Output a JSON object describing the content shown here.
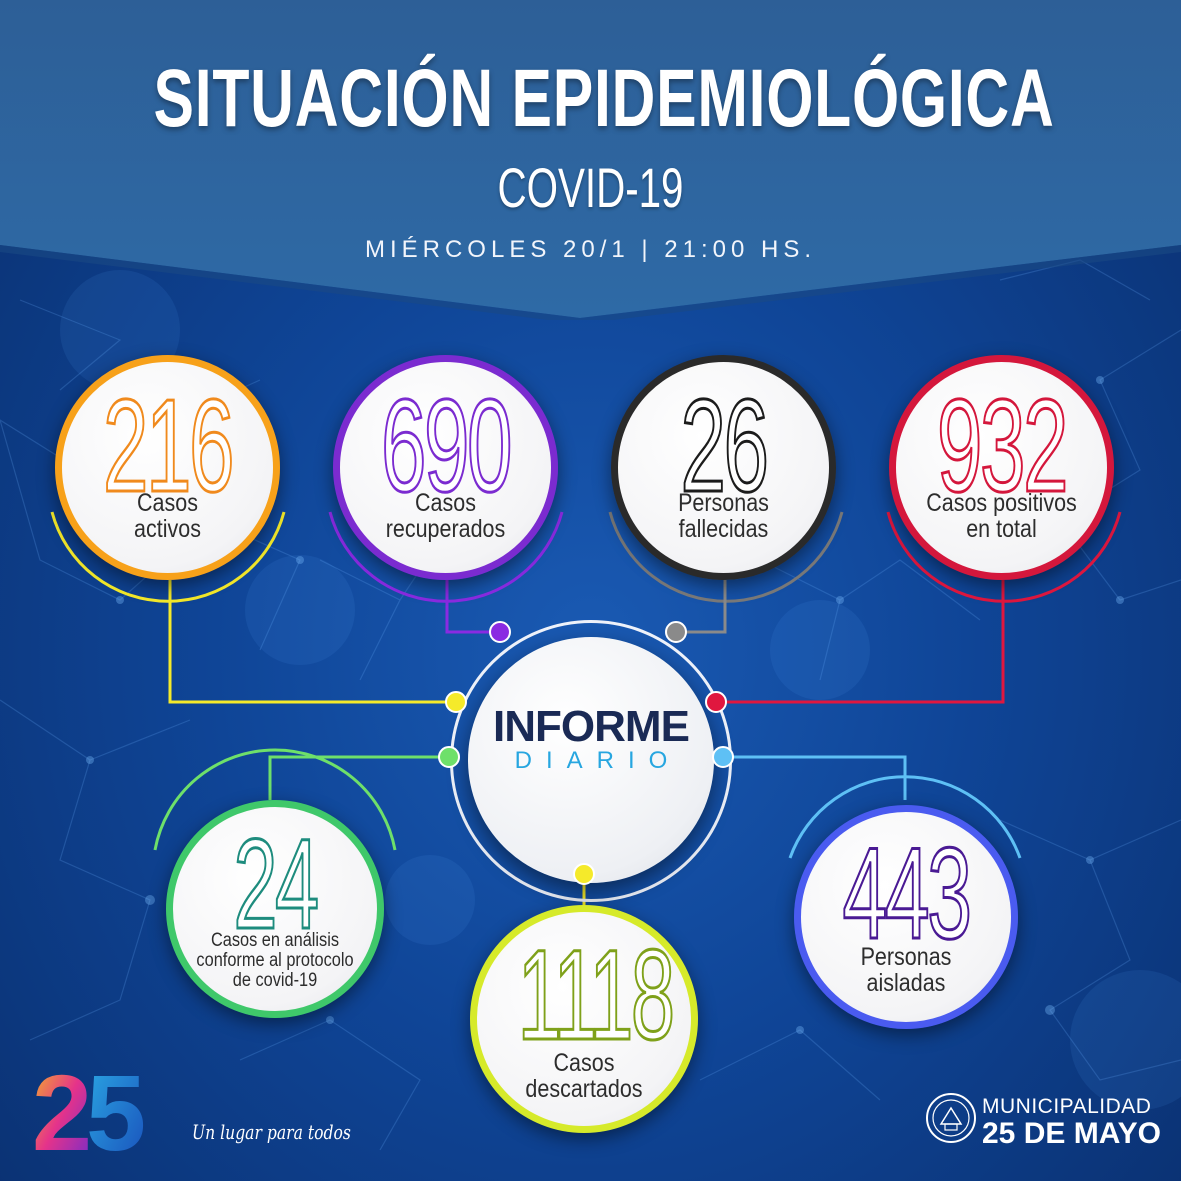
{
  "header": {
    "title": "SITUACIÓN EPIDEMIOLÓGICA",
    "subtitle": "COVID-19",
    "date": "MIÉRCOLES 20/1 | 21:00 HS."
  },
  "colors": {
    "background": "#0f4597",
    "banner": "#2b5d96",
    "activos": "#f08a1d",
    "recuperados": "#7b2bd0",
    "fallecidos": "#2a2a2a",
    "positivos": "#d4173c",
    "analisis": "#1e8c7e",
    "descartados": "#7fa11a",
    "aislados": "#4a1a94"
  },
  "stats": {
    "activos": {
      "value": "216",
      "label_1": "Casos",
      "label_2": "activos"
    },
    "recuperados": {
      "value": "690",
      "label_1": "Casos",
      "label_2": "recuperados"
    },
    "fallecidos": {
      "value": "26",
      "label_1": "Personas",
      "label_2": "fallecidas"
    },
    "positivos": {
      "value": "932",
      "label_1": "Casos positivos",
      "label_2": "en total"
    },
    "analisis": {
      "value": "24",
      "label_1": "Casos en análisis",
      "label_2": "conforme al protocolo",
      "label_3": "de covid-19"
    },
    "descartados": {
      "value": "1118",
      "label_1": "Casos",
      "label_2": "descartados"
    },
    "aislados": {
      "value": "443",
      "label_1": "Personas",
      "label_2": "aisladas"
    }
  },
  "center": {
    "title": "INFORME",
    "subtitle": "DIARIO"
  },
  "footer": {
    "logo_text": "25",
    "slogan": "Un lugar para todos",
    "municipality_1": "MUNICIPALIDAD",
    "municipality_2": "25 DE MAYO"
  }
}
